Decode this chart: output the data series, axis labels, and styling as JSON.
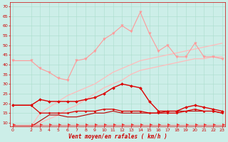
{
  "x": [
    0,
    2,
    3,
    4,
    5,
    6,
    7,
    8,
    9,
    10,
    11,
    12,
    13,
    14,
    15,
    16,
    17,
    18,
    19,
    20,
    21,
    22,
    23
  ],
  "background_color": "#cceee8",
  "grid_color": "#aaddcc",
  "xlabel": "Vent moyen/en rafales ( km/h )",
  "ylim": [
    8,
    72
  ],
  "yticks": [
    10,
    15,
    20,
    25,
    30,
    35,
    40,
    45,
    50,
    55,
    60,
    65,
    70
  ],
  "line1_color": "#ff9999",
  "line1_values": [
    42,
    42,
    38,
    36,
    33,
    32,
    42,
    43,
    47,
    53,
    56,
    60,
    57,
    67,
    56,
    47,
    50,
    44,
    44,
    51,
    44,
    44,
    43
  ],
  "line2_color": "#ffbbbb",
  "line2_values": [
    8,
    8,
    15,
    18,
    21,
    24,
    26,
    28,
    30,
    33,
    36,
    38,
    40,
    42,
    43,
    44,
    45,
    46,
    47,
    48,
    49,
    50,
    51
  ],
  "line3_color": "#ffbbbb",
  "line3_values": [
    8,
    8,
    10,
    12,
    14,
    17,
    19,
    22,
    25,
    28,
    30,
    32,
    35,
    37,
    38,
    39,
    40,
    41,
    42,
    43,
    43,
    44,
    44
  ],
  "line4_color": "#dd0000",
  "line4_values": [
    19,
    19,
    22,
    21,
    21,
    21,
    21,
    22,
    23,
    25,
    28,
    30,
    29,
    28,
    21,
    16,
    16,
    16,
    18,
    19,
    18,
    17,
    16
  ],
  "line5_color": "#dd0000",
  "line5_values": [
    19,
    19,
    15,
    15,
    15,
    15,
    16,
    16,
    16,
    17,
    17,
    16,
    16,
    16,
    15,
    15,
    15,
    15,
    16,
    17,
    16,
    16,
    15
  ],
  "line6_color": "#bb0000",
  "line6_values": [
    8,
    8,
    11,
    14,
    14,
    13,
    13,
    14,
    15,
    15,
    16,
    15,
    15,
    15,
    15,
    15,
    16,
    16,
    16,
    16,
    16,
    16,
    15
  ],
  "arrow_color": "#ee3333",
  "arrow_values": [
    9,
    9,
    9,
    9,
    9,
    9,
    9,
    9,
    9,
    9,
    9,
    9,
    9,
    9,
    9,
    9,
    9,
    9,
    9,
    9,
    9,
    9,
    9
  ]
}
